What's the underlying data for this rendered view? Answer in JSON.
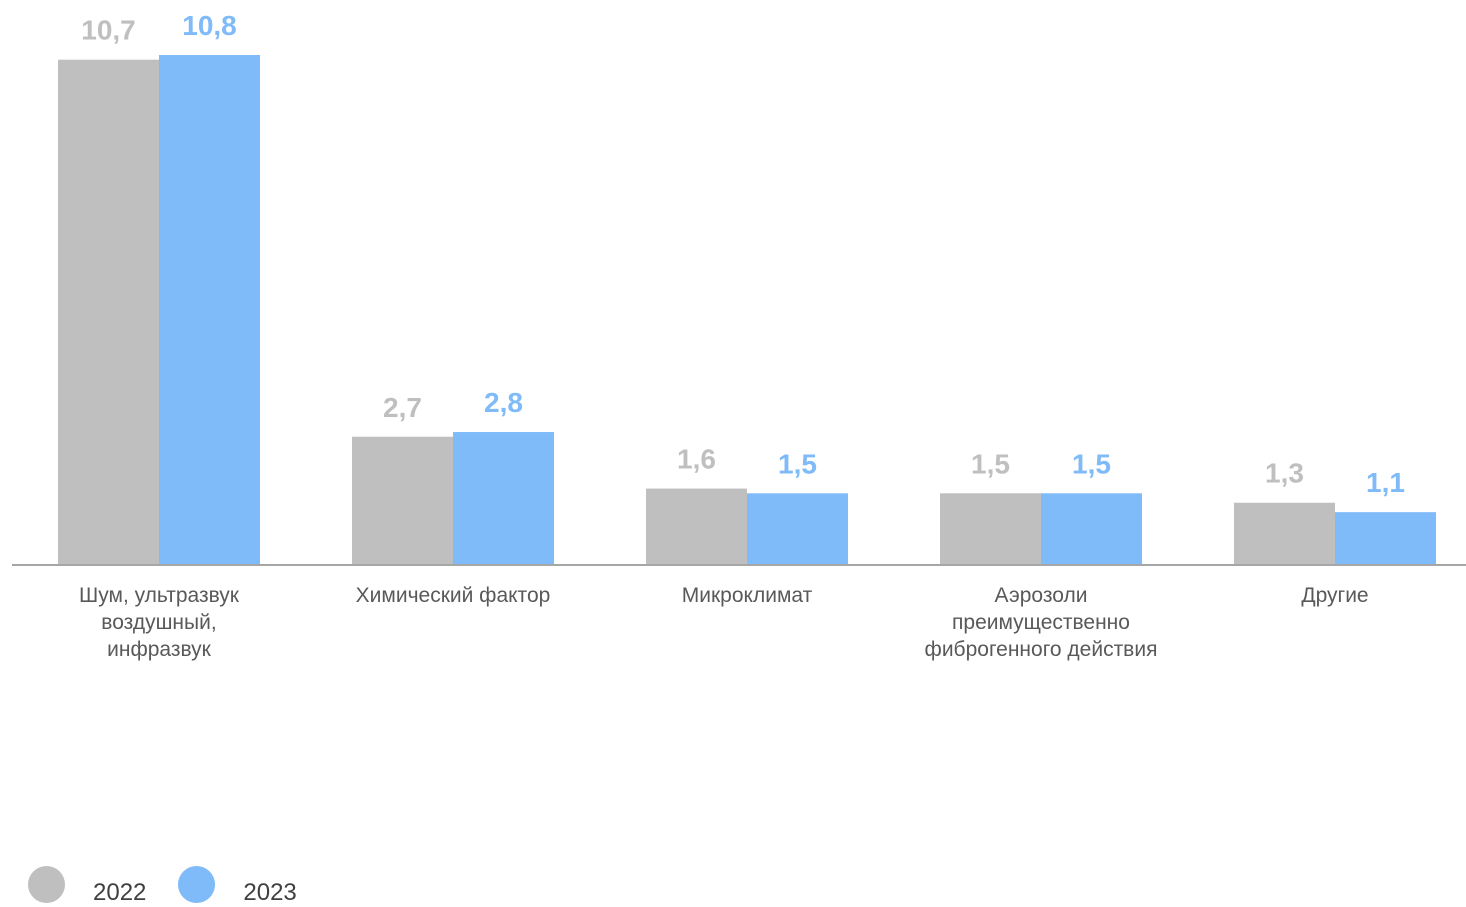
{
  "chart_data": {
    "type": "bar",
    "categories": [
      [
        "Шум, ультразвук",
        "воздушный,",
        "инфразвук"
      ],
      [
        "Химический фактор"
      ],
      [
        "Микроклимат"
      ],
      [
        "Аэрозоли",
        "преимущественно",
        "фиброгенного действия"
      ],
      [
        "Другие"
      ]
    ],
    "series": [
      {
        "name": "2022",
        "values": [
          10.7,
          2.7,
          1.6,
          1.5,
          1.3
        ],
        "labels": [
          "10,7",
          "2,7",
          "1,6",
          "1,5",
          "1,3"
        ],
        "color": "#bfbfbf"
      },
      {
        "name": "2023",
        "values": [
          10.8,
          2.8,
          1.5,
          1.5,
          1.1
        ],
        "labels": [
          "10,8",
          "2,8",
          "1,5",
          "1,5",
          "1,1"
        ],
        "color": "#7fbaf9"
      }
    ],
    "ylim": [
      0,
      10.8
    ],
    "grid": false,
    "legend_position": "bottom-left"
  }
}
